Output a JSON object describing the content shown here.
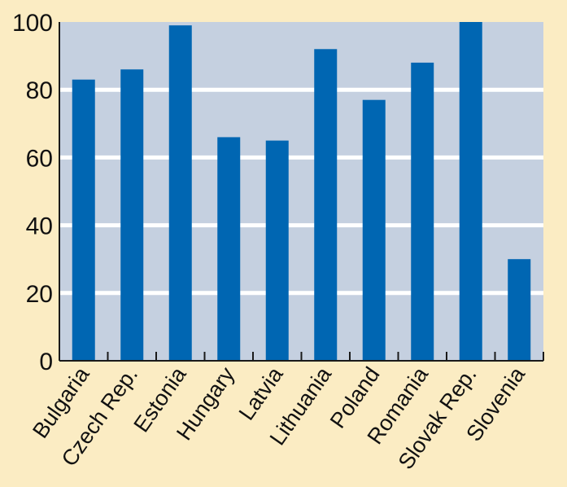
{
  "chart_data": {
    "type": "bar",
    "title": "",
    "xlabel": "",
    "ylabel": "",
    "categories": [
      "Bulgaria",
      "Czech Rep.",
      "Estonia",
      "Hungary",
      "Latvia",
      "Lithuania",
      "Poland",
      "Romania",
      "Slovak Rep.",
      "Slovenia"
    ],
    "values": [
      83,
      86,
      99,
      66,
      65,
      92,
      77,
      88,
      100,
      30
    ],
    "ylim": [
      0,
      100
    ],
    "yticks": [
      0,
      20,
      40,
      60,
      80,
      100
    ],
    "grid": true,
    "legend": "none",
    "colors": {
      "bar": "#0066b2",
      "plot_background": "#c5d0e0",
      "page_background": "#fbecc3",
      "grid": "#ffffff",
      "axis": "#1a1a1a"
    }
  }
}
